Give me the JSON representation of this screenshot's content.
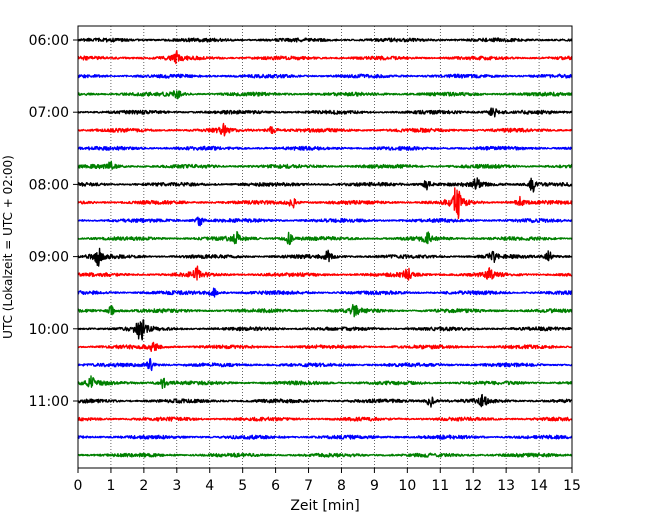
{
  "chart_data": {
    "type": "line",
    "xlabel": "Zeit  [min]",
    "ylabel": "UTC (Lokalzeit = UTC + 02:00)",
    "xlim": [
      0,
      15
    ],
    "x_ticks": [
      0,
      1,
      2,
      3,
      4,
      5,
      6,
      7,
      8,
      9,
      10,
      11,
      12,
      13,
      14,
      15
    ],
    "x_tick_labels": [
      "0",
      "1",
      "2",
      "3",
      "4",
      "5",
      "6",
      "7",
      "8",
      "9",
      "10",
      "11",
      "12",
      "13",
      "14",
      "15"
    ],
    "y_ticks": [
      {
        "label": "06:00",
        "row": 0
      },
      {
        "label": "07:00",
        "row": 4
      },
      {
        "label": "08:00",
        "row": 8
      },
      {
        "label": "09:00",
        "row": 12
      },
      {
        "label": "10:00",
        "row": 16
      },
      {
        "label": "11:00",
        "row": 20
      }
    ],
    "grid": {
      "x": true,
      "y": false
    },
    "trace_colors": [
      "#000000",
      "#ff0000",
      "#0000ff",
      "#008000"
    ],
    "row_count": 24,
    "row_interval_minutes": 15,
    "series": [
      {
        "start": "06:00",
        "color": "#000000",
        "events": []
      },
      {
        "start": "06:15",
        "color": "#ff0000",
        "events": [
          {
            "x": 3.0,
            "amp": 0.3
          }
        ]
      },
      {
        "start": "06:30",
        "color": "#0000ff",
        "events": []
      },
      {
        "start": "06:45",
        "color": "#008000",
        "events": [
          {
            "x": 3.0,
            "amp": 0.25
          }
        ]
      },
      {
        "start": "07:00",
        "color": "#000000",
        "events": [
          {
            "x": 12.6,
            "amp": 0.35
          }
        ]
      },
      {
        "start": "07:15",
        "color": "#ff0000",
        "events": [
          {
            "x": 4.4,
            "amp": 0.3
          },
          {
            "x": 5.9,
            "amp": 0.3
          }
        ]
      },
      {
        "start": "07:30",
        "color": "#0000ff",
        "events": []
      },
      {
        "start": "07:45",
        "color": "#008000",
        "events": [
          {
            "x": 1.0,
            "amp": 0.25
          }
        ]
      },
      {
        "start": "08:00",
        "color": "#000000",
        "events": [
          {
            "x": 10.6,
            "amp": 0.3
          },
          {
            "x": 12.1,
            "amp": 0.3
          },
          {
            "x": 13.8,
            "amp": 0.4
          }
        ]
      },
      {
        "start": "08:15",
        "color": "#ff0000",
        "events": [
          {
            "x": 6.5,
            "amp": 0.3
          },
          {
            "x": 11.5,
            "amp": 1.0
          },
          {
            "x": 13.4,
            "amp": 0.3
          }
        ]
      },
      {
        "start": "08:30",
        "color": "#0000ff",
        "events": [
          {
            "x": 3.7,
            "amp": 0.25
          }
        ]
      },
      {
        "start": "08:45",
        "color": "#008000",
        "events": [
          {
            "x": 4.8,
            "amp": 0.3
          },
          {
            "x": 6.4,
            "amp": 0.3
          },
          {
            "x": 10.6,
            "amp": 0.3
          }
        ]
      },
      {
        "start": "09:00",
        "color": "#000000",
        "events": [
          {
            "x": 0.6,
            "amp": 0.5
          },
          {
            "x": 7.6,
            "amp": 0.3
          },
          {
            "x": 12.6,
            "amp": 0.3
          },
          {
            "x": 14.3,
            "amp": 0.3
          }
        ]
      },
      {
        "start": "09:15",
        "color": "#ff0000",
        "events": [
          {
            "x": 3.6,
            "amp": 0.4
          },
          {
            "x": 10.0,
            "amp": 0.35
          },
          {
            "x": 12.5,
            "amp": 0.3
          }
        ]
      },
      {
        "start": "09:30",
        "color": "#0000ff",
        "events": [
          {
            "x": 4.1,
            "amp": 0.25
          }
        ]
      },
      {
        "start": "09:45",
        "color": "#008000",
        "events": [
          {
            "x": 1.0,
            "amp": 0.25
          },
          {
            "x": 8.4,
            "amp": 0.35
          }
        ]
      },
      {
        "start": "10:00",
        "color": "#000000",
        "events": [
          {
            "x": 1.9,
            "amp": 0.9
          }
        ]
      },
      {
        "start": "10:15",
        "color": "#ff0000",
        "events": [
          {
            "x": 2.3,
            "amp": 0.3
          }
        ]
      },
      {
        "start": "10:30",
        "color": "#0000ff",
        "events": [
          {
            "x": 2.2,
            "amp": 0.3
          }
        ]
      },
      {
        "start": "10:45",
        "color": "#008000",
        "events": [
          {
            "x": 0.4,
            "amp": 0.3
          },
          {
            "x": 2.6,
            "amp": 0.3
          }
        ]
      },
      {
        "start": "11:00",
        "color": "#000000",
        "events": [
          {
            "x": 10.7,
            "amp": 0.3
          },
          {
            "x": 12.3,
            "amp": 0.3
          }
        ]
      },
      {
        "start": "11:15",
        "color": "#ff0000",
        "events": []
      },
      {
        "start": "11:30",
        "color": "#0000ff",
        "events": []
      },
      {
        "start": "11:45",
        "color": "#008000",
        "events": []
      }
    ]
  }
}
